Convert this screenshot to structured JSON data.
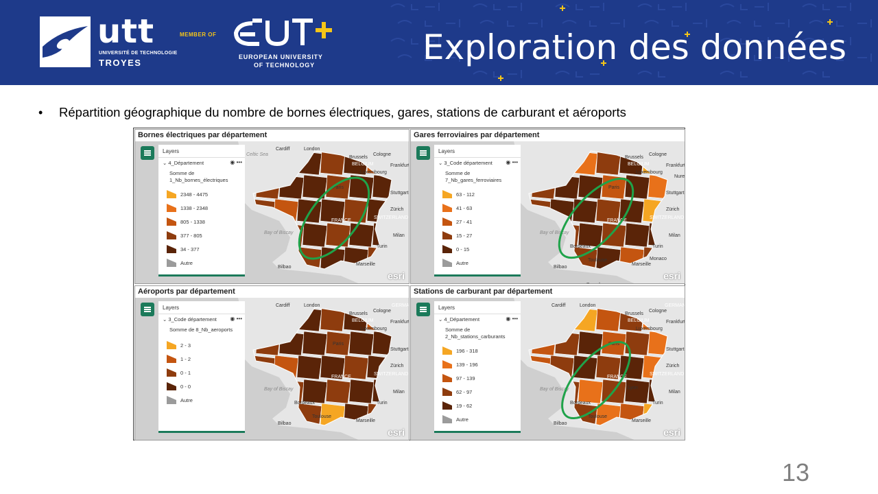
{
  "header": {
    "utt_word": "utt",
    "utt_sub": "UNIVERSITÉ DE TECHNOLOGIE",
    "utt_city": "TROYES",
    "member_of": "MEMBER OF",
    "eut_sub1": "EUROPEAN UNIVERSITY",
    "eut_sub2": "OF TECHNOLOGY",
    "title": "Exploration des données",
    "brand_color": "#1e3a8a",
    "accent_color": "#f5c518"
  },
  "bullet": {
    "text": "Répartition géographique du nombre de bornes électriques, gares, stations de carburant et aéroports"
  },
  "panels": [
    {
      "title": "Bornes électriques par département",
      "legend_head": "Layers",
      "layer_name": "4_Département",
      "field": "Somme de 1_Nb_bornes_électriques",
      "items": [
        {
          "label": "2348 - 4475",
          "color": "#f5a623"
        },
        {
          "label": "1338 - 2348",
          "color": "#e8711a"
        },
        {
          "label": "805 - 1338",
          "color": "#c45510"
        },
        {
          "label": "377 - 805",
          "color": "#8e3c0e"
        },
        {
          "label": "34 - 377",
          "color": "#5a2408"
        },
        {
          "label": "Autre",
          "color": "#9b9b9b"
        }
      ],
      "esri": "esri",
      "cities": [
        "Cardiff",
        "London",
        "Brussels",
        "Cologne",
        "BELGIUM",
        "Frankfurt am Main",
        "Luxembourg",
        "Paris",
        "Stuttgart",
        "Zürich",
        "SWITZERLAND",
        "FRANCE",
        "Bay of Biscay",
        "Milan",
        "Turin",
        "Bilbao",
        "Marseille",
        "Celtic Sea"
      ]
    },
    {
      "title": "Gares ferroviaires par département",
      "legend_head": "Layers",
      "layer_name": "3_Code département",
      "field": "Somme de 7_Nb_gares_ferroviaires",
      "items": [
        {
          "label": "63 - 112",
          "color": "#f5a623"
        },
        {
          "label": "41 - 63",
          "color": "#e8711a"
        },
        {
          "label": "27 - 41",
          "color": "#c45510"
        },
        {
          "label": "15 - 27",
          "color": "#8e3c0e"
        },
        {
          "label": "0 - 15",
          "color": "#5a2408"
        },
        {
          "label": "Autre",
          "color": "#9b9b9b"
        }
      ],
      "esri": "esri",
      "cities": [
        "Brussels",
        "Cologne",
        "BELGIUM",
        "Frankfurt am Main",
        "Luxembourg",
        "Paris",
        "Stuttgart",
        "Nure",
        "Zürich",
        "SWITZERLAND",
        "FRANCE",
        "Bay of Biscay",
        "Milan",
        "Turin",
        "Bilbao",
        "Bordeaux",
        "Toulouse",
        "Marseille",
        "Monaco",
        "Barcelona"
      ]
    },
    {
      "title": "Aéroports par département",
      "legend_head": "Layers",
      "layer_name": "3_Code département",
      "field": "Somme de 8_Nb_aeroports",
      "items": [
        {
          "label": "2 - 3",
          "color": "#f5a623"
        },
        {
          "label": "1 - 2",
          "color": "#c45510"
        },
        {
          "label": "0 - 1",
          "color": "#8e3c0e"
        },
        {
          "label": "0 - 0",
          "color": "#5a2408"
        },
        {
          "label": "Autre",
          "color": "#9b9b9b"
        }
      ],
      "esri": "esri",
      "cities": [
        "Cardiff",
        "London",
        "GERMA",
        "Brussels",
        "Cologne",
        "BELGIUM",
        "Frankfurt am Main",
        "Luxembourg",
        "Paris",
        "Stuttgart",
        "Zürich",
        "SWITZERLAND",
        "FRANCE",
        "Bay of Biscay",
        "Milan",
        "Turin",
        "Bilbao",
        "Bordeaux",
        "Toulouse",
        "Marseille"
      ]
    },
    {
      "title": "Stations de carburant par département",
      "legend_head": "Layers",
      "layer_name": "4_Département",
      "field": "Somme de 2_Nb_stations_carburants",
      "items": [
        {
          "label": "196 - 318",
          "color": "#f5a623"
        },
        {
          "label": "139 - 196",
          "color": "#e8711a"
        },
        {
          "label": "97 - 139",
          "color": "#c45510"
        },
        {
          "label": "62 - 97",
          "color": "#8e3c0e"
        },
        {
          "label": "19 - 62",
          "color": "#5a2408"
        },
        {
          "label": "Autre",
          "color": "#9b9b9b"
        }
      ],
      "esri": "esri",
      "cities": [
        "Cardiff",
        "London",
        "GERMAN",
        "Brussels",
        "Cologne",
        "BELGIUM",
        "Frankfurt am Main",
        "Luxembourg",
        "Paris",
        "Stuttgart",
        "Zürich",
        "SWITZERLAND",
        "FRANCE",
        "Lyon",
        "Bay of Biscay",
        "Milan",
        "Turin",
        "Bilbao",
        "Bordeaux",
        "Toulouse",
        "Marseille"
      ]
    }
  ],
  "highlight_color": "#1fa34a",
  "page_number": "13"
}
